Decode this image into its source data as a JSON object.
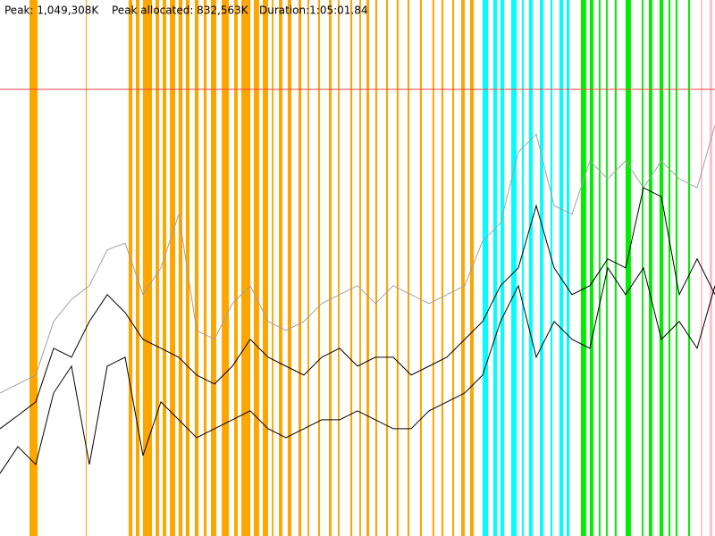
{
  "chart_data": {
    "type": "line",
    "peak": {
      "value": 1049308,
      "label": "Peak: 1,049,308K"
    },
    "peak_allocated": "Peak allocated: 832,563K",
    "duration": "Duration:1:05:01.84",
    "peak_color": "#ff4040",
    "xlim": [
      0,
      3901.84
    ],
    "ylim": [
      0,
      1259170
    ],
    "x": [
      0,
      97.5,
      195.1,
      292.6,
      390.2,
      487.7,
      585.3,
      682.8,
      780.4,
      877.9,
      975.5,
      1073.0,
      1170.6,
      1268.1,
      1365.6,
      1463.2,
      1560.7,
      1658.3,
      1755.8,
      1853.4,
      1950.9,
      2048.5,
      2146.0,
      2243.6,
      2341.1,
      2438.7,
      2536.2,
      2633.8,
      2731.3,
      2828.8,
      2926.4,
      3023.9,
      3121.5,
      3219.0,
      3316.6,
      3414.1,
      3511.7,
      3609.2,
      3706.8,
      3804.3,
      3901.8
    ],
    "series": [
      {
        "color": "#a0a0a0",
        "values": [
          336000,
          357000,
          378000,
          504000,
          556000,
          588000,
          672000,
          688000,
          567000,
          630000,
          756000,
          483000,
          462000,
          546000,
          588000,
          504000,
          483000,
          504000,
          546000,
          567000,
          588000,
          546000,
          588000,
          567000,
          546000,
          567000,
          588000,
          693000,
          735000,
          902000,
          944000,
          776000,
          756000,
          881000,
          839000,
          881000,
          818000,
          881000,
          839000,
          818000,
          965000
        ]
      },
      {
        "color": "#000000",
        "values": [
          252000,
          283000,
          315000,
          441000,
          420000,
          504000,
          567000,
          525000,
          462000,
          441000,
          420000,
          378000,
          357000,
          399000,
          462000,
          420000,
          399000,
          378000,
          420000,
          441000,
          399000,
          420000,
          420000,
          378000,
          399000,
          420000,
          462000,
          504000,
          588000,
          630000,
          776000,
          630000,
          567000,
          588000,
          651000,
          630000,
          818000,
          797000,
          567000,
          651000,
          567000
        ]
      },
      {
        "color": "#000000",
        "values": [
          147000,
          210000,
          168000,
          336000,
          399000,
          168000,
          399000,
          420000,
          189000,
          315000,
          273000,
          231000,
          252000,
          273000,
          294000,
          252000,
          231000,
          252000,
          273000,
          273000,
          294000,
          273000,
          252000,
          252000,
          294000,
          315000,
          336000,
          378000,
          504000,
          588000,
          420000,
          504000,
          462000,
          441000,
          630000,
          567000,
          630000,
          462000,
          504000,
          441000,
          588000
        ]
      }
    ],
    "bands": [
      {
        "color": "#ffa500",
        "ranges": [
          [
            161,
            205
          ],
          [
            468,
            473
          ],
          [
            702,
            722
          ],
          [
            741,
            761
          ],
          [
            780,
            829
          ],
          [
            849,
            868
          ],
          [
            888,
            907
          ],
          [
            927,
            956
          ],
          [
            975,
            995
          ],
          [
            1014,
            1034
          ],
          [
            1063,
            1083
          ],
          [
            1112,
            1127
          ],
          [
            1151,
            1180
          ],
          [
            1210,
            1249
          ],
          [
            1278,
            1297
          ],
          [
            1317,
            1366
          ],
          [
            1385,
            1414
          ],
          [
            1434,
            1463
          ],
          [
            1483,
            1492
          ],
          [
            1522,
            1541
          ],
          [
            1570,
            1590
          ],
          [
            1629,
            1644
          ],
          [
            1678,
            1687
          ],
          [
            1736,
            1746
          ],
          [
            1795,
            1809
          ],
          [
            1844,
            1853
          ],
          [
            1912,
            1922
          ],
          [
            1961,
            1970
          ],
          [
            2000,
            2014
          ],
          [
            2048,
            2058
          ],
          [
            2107,
            2117
          ],
          [
            2165,
            2175
          ],
          [
            2224,
            2234
          ],
          [
            2292,
            2302
          ],
          [
            2360,
            2370
          ],
          [
            2409,
            2419
          ],
          [
            2468,
            2478
          ],
          [
            2517,
            2536
          ],
          [
            2565,
            2585
          ]
        ]
      },
      {
        "color": "#00ffff",
        "ranges": [
          [
            2634,
            2663
          ],
          [
            2692,
            2712
          ],
          [
            2731,
            2751
          ],
          [
            2790,
            2819
          ],
          [
            2848,
            2858
          ],
          [
            2887,
            2907
          ],
          [
            2946,
            2965
          ],
          [
            3004,
            3014
          ],
          [
            3053,
            3073
          ],
          [
            3092,
            3107
          ]
        ]
      },
      {
        "color": "#00ee00",
        "ranges": [
          [
            3170,
            3199
          ],
          [
            3219,
            3238
          ],
          [
            3268,
            3277
          ],
          [
            3307,
            3316
          ],
          [
            3355,
            3365
          ],
          [
            3414,
            3443
          ],
          [
            3502,
            3511
          ],
          [
            3541,
            3560
          ],
          [
            3599,
            3619
          ],
          [
            3648,
            3658
          ],
          [
            3687,
            3697
          ],
          [
            3755,
            3765
          ]
        ]
      },
      {
        "color": "#ffc0cb",
        "ranges": [
          [
            3824,
            3833
          ],
          [
            3872,
            3887
          ]
        ]
      }
    ]
  }
}
